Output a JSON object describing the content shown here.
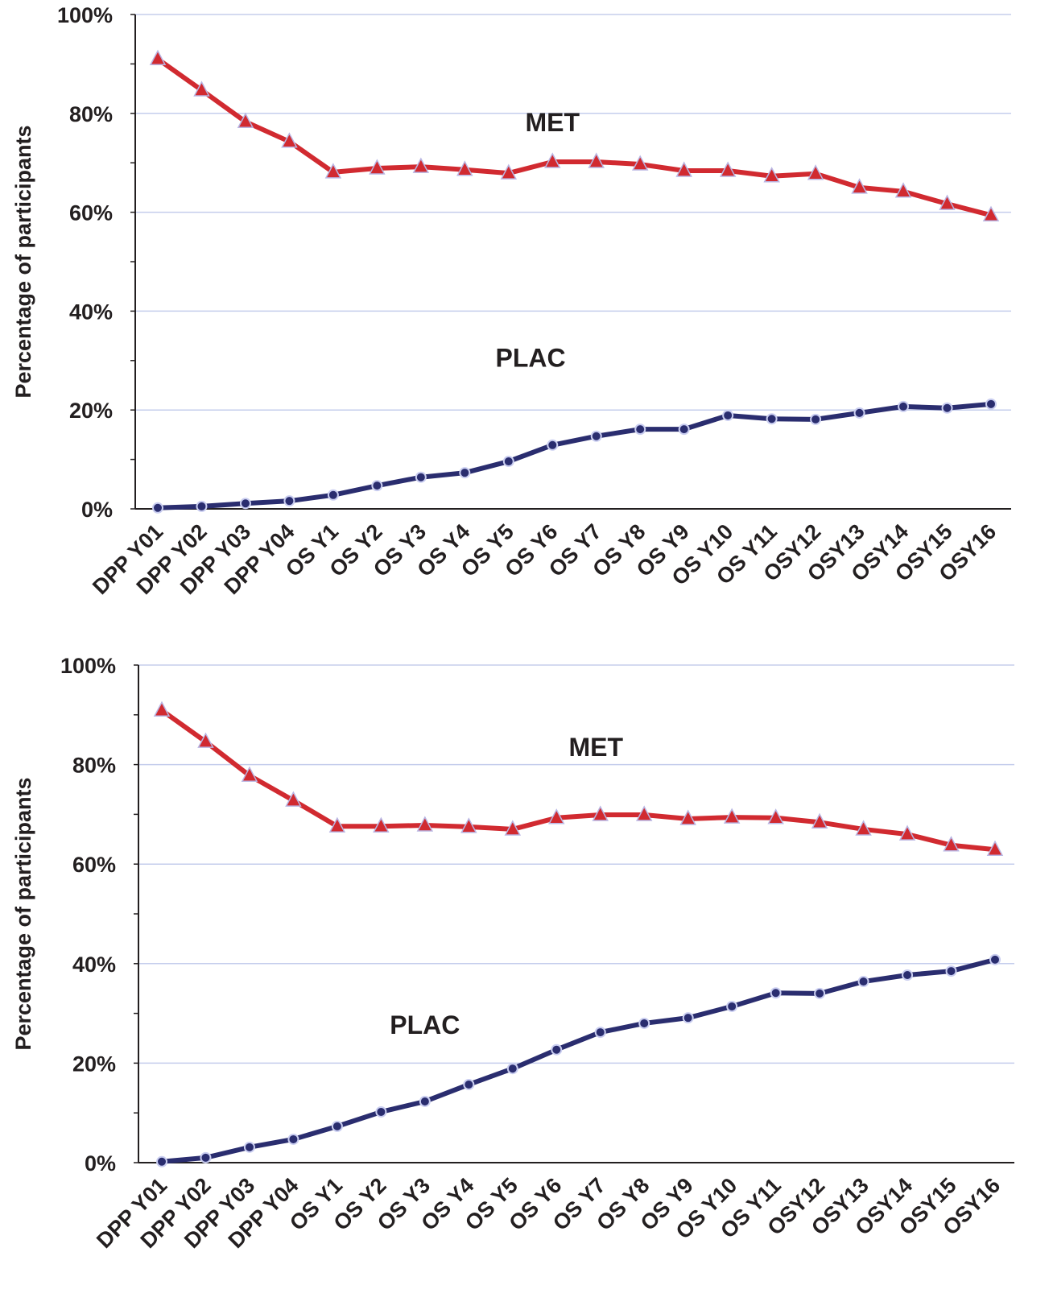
{
  "chart_data": [
    {
      "type": "line",
      "title": "",
      "xlabel": "",
      "ylabel": "Percentage of participants",
      "ylim": [
        0,
        100
      ],
      "yticks": [
        "0%",
        "20%",
        "40%",
        "60%",
        "80%",
        "100%"
      ],
      "grid": true,
      "categories": [
        "DPP Y01",
        "DPP Y02",
        "DPP Y03",
        "DPP Y04",
        "OS Y1",
        "OS Y2",
        "OS Y3",
        "OS Y4",
        "OS Y5",
        "OS Y6",
        "OS Y7",
        "OS Y8",
        "OS Y9",
        "OS Y10",
        "OS Y11",
        "OSY12",
        "OSY13",
        "OSY14",
        "OSY15",
        "OSY16"
      ],
      "series": [
        {
          "name": "MET",
          "color": "#d12a30",
          "marker": "triangle",
          "values": [
            91.0,
            84.7,
            78.3,
            74.3,
            68.1,
            68.9,
            69.2,
            68.6,
            67.9,
            70.2,
            70.2,
            69.7,
            68.4,
            68.4,
            67.3,
            67.8,
            65.0,
            64.2,
            61.7,
            59.4
          ],
          "label_at": [
            9.0,
            78.2
          ]
        },
        {
          "name": "PLAC",
          "color": "#2a2d6f",
          "marker": "circle",
          "values": [
            0.2,
            0.5,
            1.1,
            1.6,
            2.8,
            4.7,
            6.4,
            7.3,
            9.6,
            12.9,
            14.7,
            16.1,
            16.1,
            18.9,
            18.2,
            18.1,
            19.4,
            20.7,
            20.4,
            21.2
          ],
          "label_at": [
            8.5,
            30.5
          ]
        }
      ]
    },
    {
      "type": "line",
      "title": "",
      "xlabel": "",
      "ylabel": "Percentage of participants",
      "ylim": [
        0,
        100
      ],
      "yticks": [
        "0%",
        "20%",
        "40%",
        "60%",
        "80%",
        "100%"
      ],
      "grid": true,
      "categories": [
        "DPP Y01",
        "DPP Y02",
        "DPP Y03",
        "DPP Y04",
        "OS Y1",
        "OS Y2",
        "OS Y3",
        "OS Y4",
        "OS Y5",
        "OS Y6",
        "OS Y7",
        "OS Y8",
        "OS Y9",
        "OS Y10",
        "OS Y11",
        "OSY12",
        "OSY13",
        "OSY14",
        "OSY15",
        "OSY16"
      ],
      "series": [
        {
          "name": "MET",
          "color": "#d12a30",
          "marker": "triangle",
          "values": [
            90.9,
            84.6,
            77.8,
            72.8,
            67.6,
            67.6,
            67.8,
            67.5,
            67.0,
            69.3,
            69.9,
            69.9,
            69.1,
            69.4,
            69.3,
            68.4,
            67.0,
            66.0,
            63.8,
            62.9
          ],
          "label_at": [
            9.9,
            83.5
          ]
        },
        {
          "name": "PLAC",
          "color": "#2a2d6f",
          "marker": "circle",
          "values": [
            0.2,
            1.0,
            3.1,
            4.7,
            7.3,
            10.2,
            12.3,
            15.7,
            18.9,
            22.7,
            26.2,
            28.0,
            29.1,
            31.4,
            34.1,
            34.0,
            36.4,
            37.7,
            38.5,
            40.8
          ],
          "label_at": [
            6.0,
            27.7
          ]
        }
      ]
    }
  ]
}
